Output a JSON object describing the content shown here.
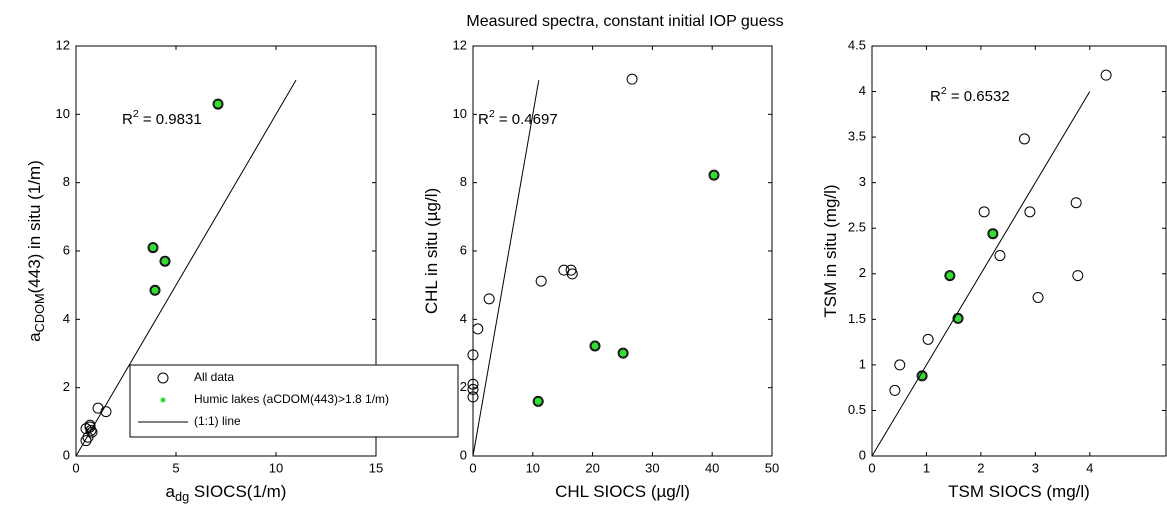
{
  "title": "Measured spectra, constant initial IOP guess",
  "chart_data": [
    {
      "type": "scatter",
      "xlabel": {
        "text": "a",
        "sub": "dg",
        "after": " SIOCS(1/m)"
      },
      "ylabel": {
        "text": "a",
        "sub": "CDOM",
        "after": "(443) in situ (1/m)"
      },
      "annotation": {
        "text": "R",
        "sup": "2",
        "after": " = 0.9831"
      },
      "xlim": [
        0,
        15
      ],
      "xticks": [
        0,
        5,
        10,
        15
      ],
      "ylim": [
        0,
        12
      ],
      "yticks": [
        0,
        2,
        4,
        6,
        8,
        10,
        12
      ],
      "legend": "bottom-right",
      "series": [
        {
          "name": "All data",
          "marker": "open-circle",
          "color": "#000000",
          "x": [
            0.5,
            0.6,
            0.7,
            0.75,
            0.8,
            0.5,
            0.7,
            1.1,
            1.5,
            3.85,
            4.45,
            3.95,
            7.1
          ],
          "values": [
            0.45,
            0.55,
            0.85,
            0.75,
            0.7,
            0.8,
            0.9,
            1.4,
            1.3,
            6.1,
            5.7,
            4.85,
            10.3
          ]
        },
        {
          "name": "Humic lakes (aCDOM(443)>1.8 1/m)",
          "marker": "dot",
          "color": "#33dd33",
          "x": [
            3.85,
            4.45,
            3.95,
            7.1
          ],
          "values": [
            6.1,
            5.7,
            4.85,
            10.3
          ]
        },
        {
          "name": "(1:1) line",
          "marker": "line",
          "color": "#000000",
          "x": [
            0,
            11
          ],
          "values": [
            0,
            11
          ]
        }
      ]
    },
    {
      "type": "scatter",
      "xlabel": {
        "text": "CHL SIOCS (µg/l)"
      },
      "ylabel": {
        "text": "CHL in situ (µg/l)"
      },
      "annotation": {
        "text": "R",
        "sup": "2",
        "after": " = 0.4697"
      },
      "xlim": [
        0,
        50
      ],
      "xticks": [
        0,
        10,
        20,
        30,
        40,
        50
      ],
      "ylim": [
        0,
        12
      ],
      "yticks": [
        0,
        2,
        4,
        6,
        8,
        10,
        12
      ],
      "series": [
        {
          "marker": "open-circle",
          "color": "#000000",
          "x": [
            0,
            0,
            0,
            0,
            0.8,
            2.7,
            11.4,
            15.2,
            16.4,
            16.6,
            26.6,
            40.3,
            20.4,
            25.1,
            10.9
          ],
          "values": [
            2.96,
            2.1,
            1.95,
            1.73,
            3.72,
            4.6,
            5.12,
            5.44,
            5.44,
            5.33,
            11.03,
            8.22,
            3.22,
            3.01,
            1.6
          ]
        },
        {
          "marker": "dot",
          "color": "#33dd33",
          "x": [
            40.3,
            20.4,
            25.1,
            10.9
          ],
          "values": [
            8.22,
            3.22,
            3.01,
            1.6
          ]
        },
        {
          "marker": "line",
          "color": "#000000",
          "x": [
            0,
            11
          ],
          "values": [
            0,
            11
          ]
        }
      ]
    },
    {
      "type": "scatter",
      "xlabel": {
        "text": "TSM SIOCS (mg/l)"
      },
      "ylabel": {
        "text": "TSM in situ (mg/l)"
      },
      "annotation": {
        "text": "R",
        "sup": "2",
        "after": " = 0.6532"
      },
      "xlim": [
        0,
        5.4
      ],
      "xticks": [
        0,
        1,
        2,
        3,
        4
      ],
      "ylim": [
        0,
        4.5
      ],
      "yticks": [
        0,
        0.5,
        1,
        1.5,
        2,
        2.5,
        3,
        3.5,
        4,
        4.5
      ],
      "series": [
        {
          "marker": "open-circle",
          "color": "#000000",
          "x": [
            0.42,
            0.51,
            1.03,
            0.92,
            1.43,
            1.58,
            2.22,
            2.06,
            2.35,
            2.8,
            2.9,
            3.05,
            3.75,
            3.78,
            4.3
          ],
          "values": [
            0.72,
            1.0,
            1.28,
            0.88,
            1.98,
            1.51,
            2.44,
            2.68,
            2.2,
            3.48,
            2.68,
            1.74,
            2.78,
            1.98,
            4.18
          ]
        },
        {
          "marker": "dot",
          "color": "#33dd33",
          "x": [
            0.92,
            1.43,
            1.58,
            2.22
          ],
          "values": [
            0.88,
            1.98,
            1.51,
            2.44
          ]
        },
        {
          "marker": "line",
          "color": "#000000",
          "x": [
            0,
            4
          ],
          "values": [
            0,
            4
          ]
        }
      ]
    }
  ]
}
